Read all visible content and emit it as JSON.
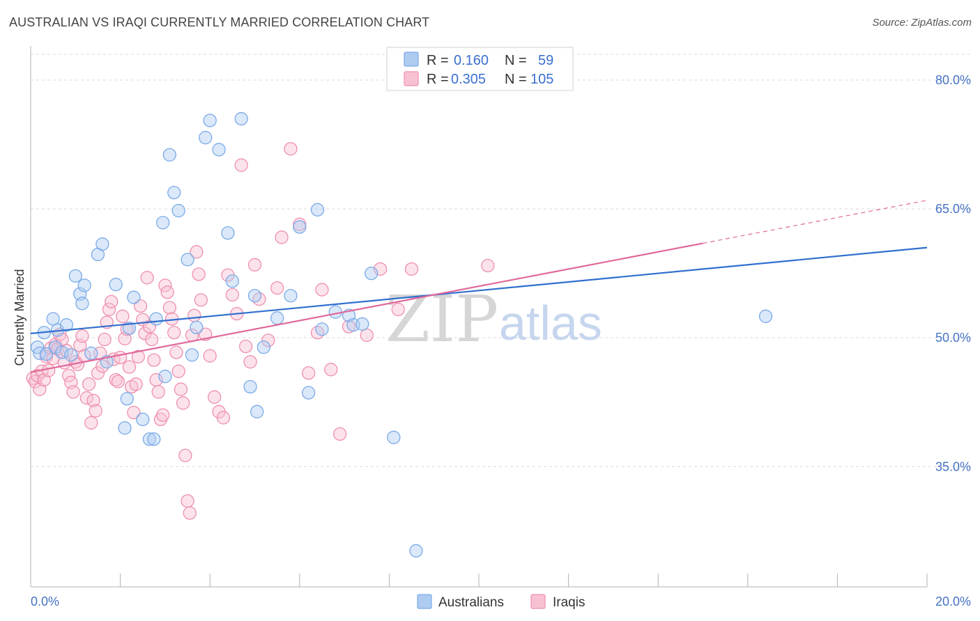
{
  "header": {
    "title": "AUSTRALIAN VS IRAQI CURRENTLY MARRIED CORRELATION CHART",
    "source": "Source: ZipAtlas.com"
  },
  "legend_box": {
    "rows": [
      {
        "r_label": "R =",
        "r_value": "0.160",
        "n_label": "N =",
        "n_value": "59"
      },
      {
        "r_label": "R =",
        "r_value": "0.305",
        "n_label": "N =",
        "n_value": "105"
      }
    ]
  },
  "bottom_legend": [
    "Australians",
    "Iraqis"
  ],
  "watermark": {
    "zip": "ZIP",
    "atlas": "atlas"
  },
  "colors": {
    "australians": "#7aaae8",
    "australians_fill": "#aecbf2",
    "australians_line": "#2f6fcf",
    "iraqis": "#ee8fae",
    "iraqis_fill": "#f8c1d2",
    "iraqis_line": "#e0689a",
    "tick_label": "#4472c4",
    "grid": "#d9d9d9"
  },
  "chart_data": {
    "type": "scatter",
    "title": "AUSTRALIAN VS IRAQI CURRENTLY MARRIED CORRELATION CHART",
    "xlabel": "",
    "ylabel": "Currently Married",
    "xlim": [
      0.0,
      20.0
    ],
    "ylim": [
      21.0,
      83.0
    ],
    "x_tick_labels": [
      "0.0%",
      "20.0%"
    ],
    "y_ticks": [
      35.0,
      50.0,
      65.0,
      80.0
    ],
    "y_tick_labels": [
      "35.0%",
      "50.0%",
      "65.0%",
      "80.0%"
    ],
    "grid": true,
    "series": [
      {
        "name": "Australians",
        "R": 0.16,
        "N": 59,
        "trend": {
          "x0": 0.0,
          "y0": 50.5,
          "x1": 20.0,
          "y1": 60.5
        },
        "points": [
          [
            0.15,
            48.9
          ],
          [
            0.2,
            48.2
          ],
          [
            0.3,
            50.6
          ],
          [
            0.35,
            48.1
          ],
          [
            0.5,
            52.2
          ],
          [
            0.55,
            48.9
          ],
          [
            0.6,
            50.9
          ],
          [
            0.7,
            48.3
          ],
          [
            0.8,
            51.5
          ],
          [
            0.9,
            48.0
          ],
          [
            1.0,
            57.2
          ],
          [
            1.1,
            55.1
          ],
          [
            1.15,
            54.0
          ],
          [
            1.2,
            56.1
          ],
          [
            1.35,
            48.2
          ],
          [
            1.5,
            59.7
          ],
          [
            1.6,
            60.9
          ],
          [
            1.7,
            47.2
          ],
          [
            1.9,
            56.2
          ],
          [
            2.1,
            39.5
          ],
          [
            2.15,
            42.9
          ],
          [
            2.2,
            51.1
          ],
          [
            2.3,
            54.7
          ],
          [
            2.5,
            40.5
          ],
          [
            2.65,
            38.2
          ],
          [
            2.75,
            38.2
          ],
          [
            2.8,
            52.2
          ],
          [
            2.95,
            63.4
          ],
          [
            3.0,
            45.5
          ],
          [
            3.1,
            71.3
          ],
          [
            3.2,
            66.9
          ],
          [
            3.3,
            64.8
          ],
          [
            3.5,
            59.1
          ],
          [
            3.6,
            48.0
          ],
          [
            3.7,
            51.2
          ],
          [
            3.9,
            73.3
          ],
          [
            4.0,
            75.3
          ],
          [
            4.2,
            71.9
          ],
          [
            4.4,
            62.2
          ],
          [
            4.5,
            56.6
          ],
          [
            4.7,
            75.5
          ],
          [
            4.9,
            44.3
          ],
          [
            5.0,
            54.9
          ],
          [
            5.05,
            41.4
          ],
          [
            5.2,
            48.9
          ],
          [
            5.5,
            52.3
          ],
          [
            5.8,
            54.9
          ],
          [
            6.0,
            62.9
          ],
          [
            6.2,
            43.6
          ],
          [
            6.4,
            64.9
          ],
          [
            6.5,
            51.0
          ],
          [
            6.8,
            53.0
          ],
          [
            7.1,
            52.6
          ],
          [
            7.2,
            51.5
          ],
          [
            7.4,
            51.6
          ],
          [
            7.6,
            57.5
          ],
          [
            8.1,
            38.4
          ],
          [
            8.6,
            25.2
          ],
          [
            16.4,
            52.5
          ]
        ]
      },
      {
        "name": "Iraqis",
        "R": 0.305,
        "N": 105,
        "trend": {
          "x0": 0.0,
          "y0": 46.0,
          "x1": 15.0,
          "y1": 61.0,
          "dashed_to": {
            "x": 20.0,
            "y": 66.0
          }
        },
        "points": [
          [
            0.05,
            45.3
          ],
          [
            0.1,
            44.9
          ],
          [
            0.15,
            45.6
          ],
          [
            0.2,
            44.0
          ],
          [
            0.25,
            46.1
          ],
          [
            0.3,
            45.1
          ],
          [
            0.35,
            47.8
          ],
          [
            0.4,
            46.2
          ],
          [
            0.45,
            48.8
          ],
          [
            0.5,
            47.6
          ],
          [
            0.55,
            49.2
          ],
          [
            0.6,
            48.7
          ],
          [
            0.65,
            50.4
          ],
          [
            0.7,
            49.8
          ],
          [
            0.75,
            47.1
          ],
          [
            0.8,
            48.5
          ],
          [
            0.85,
            45.6
          ],
          [
            0.9,
            44.8
          ],
          [
            0.95,
            43.7
          ],
          [
            1.0,
            47.2
          ],
          [
            1.05,
            46.9
          ],
          [
            1.1,
            49.1
          ],
          [
            1.15,
            50.2
          ],
          [
            1.2,
            47.9
          ],
          [
            1.25,
            43.0
          ],
          [
            1.3,
            44.6
          ],
          [
            1.35,
            40.1
          ],
          [
            1.4,
            42.7
          ],
          [
            1.45,
            41.5
          ],
          [
            1.5,
            45.9
          ],
          [
            1.55,
            48.2
          ],
          [
            1.6,
            46.7
          ],
          [
            1.65,
            49.8
          ],
          [
            1.7,
            51.8
          ],
          [
            1.75,
            53.3
          ],
          [
            1.8,
            54.2
          ],
          [
            1.85,
            47.5
          ],
          [
            1.9,
            45.1
          ],
          [
            1.95,
            44.9
          ],
          [
            2.0,
            47.7
          ],
          [
            2.05,
            52.5
          ],
          [
            2.1,
            49.9
          ],
          [
            2.15,
            51.0
          ],
          [
            2.2,
            46.6
          ],
          [
            2.25,
            44.3
          ],
          [
            2.3,
            41.3
          ],
          [
            2.35,
            44.6
          ],
          [
            2.4,
            47.8
          ],
          [
            2.45,
            53.7
          ],
          [
            2.5,
            52.1
          ],
          [
            2.55,
            50.5
          ],
          [
            2.6,
            57.0
          ],
          [
            2.65,
            51.3
          ],
          [
            2.7,
            49.8
          ],
          [
            2.75,
            47.4
          ],
          [
            2.8,
            45.1
          ],
          [
            2.85,
            43.7
          ],
          [
            2.9,
            40.5
          ],
          [
            2.95,
            41.0
          ],
          [
            3.0,
            56.1
          ],
          [
            3.05,
            55.3
          ],
          [
            3.1,
            53.5
          ],
          [
            3.15,
            52.2
          ],
          [
            3.2,
            50.6
          ],
          [
            3.25,
            48.3
          ],
          [
            3.3,
            46.1
          ],
          [
            3.35,
            44.0
          ],
          [
            3.4,
            42.4
          ],
          [
            3.45,
            36.3
          ],
          [
            3.5,
            31.0
          ],
          [
            3.55,
            29.6
          ],
          [
            3.6,
            50.3
          ],
          [
            3.65,
            52.6
          ],
          [
            3.7,
            60.0
          ],
          [
            3.75,
            57.4
          ],
          [
            3.8,
            54.4
          ],
          [
            3.9,
            50.4
          ],
          [
            4.0,
            47.9
          ],
          [
            4.1,
            43.1
          ],
          [
            4.2,
            41.4
          ],
          [
            4.3,
            40.7
          ],
          [
            4.4,
            57.3
          ],
          [
            4.5,
            55.0
          ],
          [
            4.6,
            52.8
          ],
          [
            4.7,
            70.1
          ],
          [
            4.8,
            49.0
          ],
          [
            4.9,
            47.2
          ],
          [
            5.0,
            58.5
          ],
          [
            5.1,
            54.5
          ],
          [
            5.3,
            49.7
          ],
          [
            5.5,
            55.8
          ],
          [
            5.6,
            61.7
          ],
          [
            5.8,
            72.0
          ],
          [
            6.0,
            63.2
          ],
          [
            6.2,
            45.9
          ],
          [
            6.4,
            50.6
          ],
          [
            6.5,
            55.6
          ],
          [
            6.7,
            46.3
          ],
          [
            6.9,
            38.8
          ],
          [
            7.1,
            51.3
          ],
          [
            7.5,
            50.3
          ],
          [
            7.8,
            58.0
          ],
          [
            8.2,
            53.3
          ],
          [
            8.5,
            58.0
          ],
          [
            10.2,
            58.4
          ]
        ]
      }
    ]
  }
}
